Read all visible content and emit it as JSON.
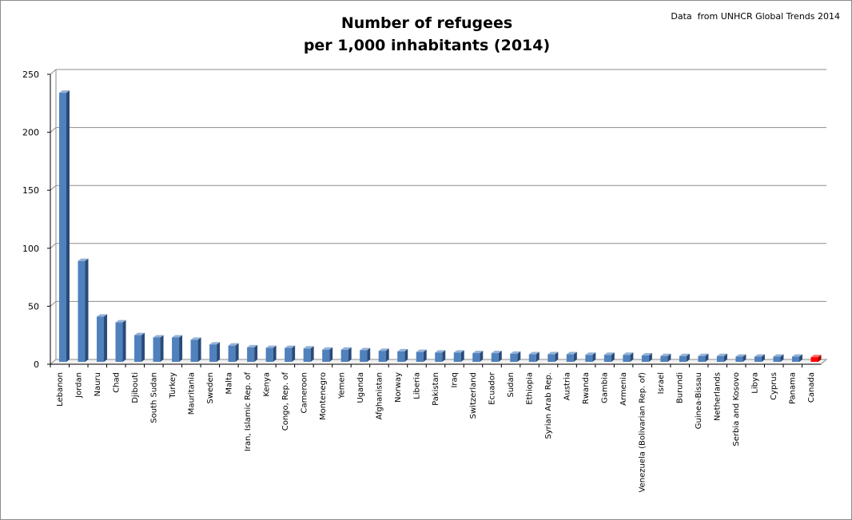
{
  "title_lines": [
    "Number of refugees",
    "per 1,000 inhabitants (2014)"
  ],
  "source_note": "Data  from UNHCR Global Trends 2014",
  "colors": {
    "bar_face": "#4f81bd",
    "bar_side": "#2a4a78",
    "bar_top": "#95b3d7",
    "highlight_face": "#ff0000",
    "highlight_side": "#a00000",
    "highlight_top": "#ff6666",
    "grid": "#8c8c8c"
  },
  "chart_data": {
    "type": "bar",
    "title": "Number of refugees per 1,000 inhabitants (2014)",
    "xlabel": "",
    "ylabel": "",
    "ylim": [
      0,
      250
    ],
    "yticks": [
      0,
      50,
      100,
      150,
      200,
      250
    ],
    "grid": true,
    "legend": "none",
    "highlight": "Canada",
    "categories": [
      "Lebanon",
      "Jordan",
      "Nauru",
      "Chad",
      "Djibouti",
      "South Sudan",
      "Turkey",
      "Mauritania",
      "Sweden",
      "Malta",
      "Iran, Islamic Rep. of",
      "Kenya",
      "Congo, Rep. of",
      "Cameroon",
      "Montenegro",
      "Yemen",
      "Uganda",
      "Afghanistan",
      "Norway",
      "Liberia",
      "Pakistan",
      "Iraq",
      "Switzerland",
      "Ecuador",
      "Sudan",
      "Ethiopia",
      "Syrian Arab Rep.",
      "Austria",
      "Rwanda",
      "Gambia",
      "Armenia",
      "Venezuela (Bolivarian Rep. of)",
      "Israel",
      "Burundi",
      "Guinea-Bissau",
      "Netherlands",
      "Serbia and Kosovo",
      "Libya",
      "Cyprus",
      "Panama",
      "Canada"
    ],
    "values": [
      232,
      87,
      39,
      34,
      23,
      21,
      21,
      19,
      15,
      14,
      12.5,
      12,
      12,
      11.5,
      10.5,
      10.5,
      10,
      9.5,
      9,
      8.5,
      8,
      8,
      7.5,
      7.5,
      7,
      6.5,
      6.5,
      6.5,
      6,
      6,
      6,
      5.5,
      5,
      5,
      5,
      5,
      4.5,
      4.5,
      4.5,
      4.5,
      4
    ]
  }
}
